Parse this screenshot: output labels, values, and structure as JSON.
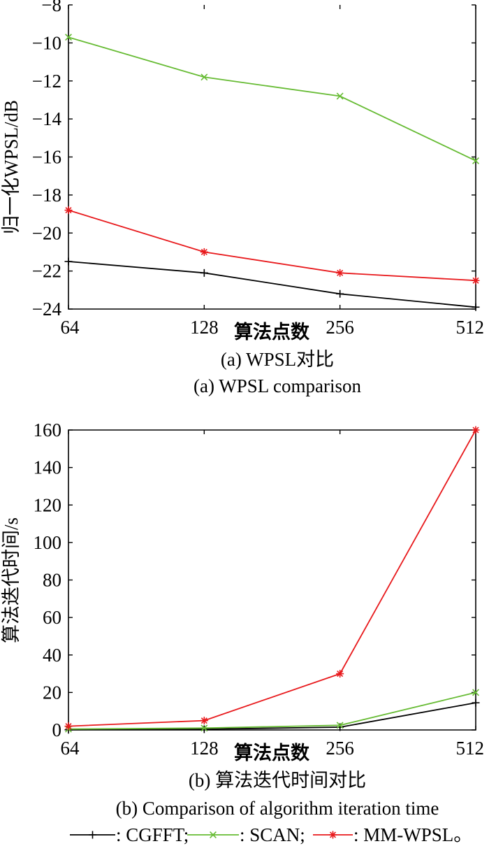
{
  "chart_data": [
    {
      "type": "line",
      "caption_cn": "(a) WPSL对比",
      "caption_en": "(a) WPSL comparison",
      "xlabel": "算法点数",
      "ylabel": "归一化WPSL/dB",
      "categories": [
        "64",
        "128",
        "256",
        "512"
      ],
      "yticks": [
        "−8",
        "−10",
        "−12",
        "−14",
        "−16",
        "−18",
        "−20",
        "−22",
        "−24"
      ],
      "ylim": [
        -24,
        -8
      ],
      "grid": false,
      "series": [
        {
          "name": "CGFFT",
          "color": "#000000",
          "marker": "plus",
          "values": [
            -21.5,
            -22.1,
            -23.2,
            -23.9
          ]
        },
        {
          "name": "SCAN",
          "color": "#66bb33",
          "marker": "x",
          "values": [
            -9.7,
            -11.8,
            -12.8,
            -16.2
          ]
        },
        {
          "name": "MM-WPSL",
          "color": "#e8191c",
          "marker": "star",
          "values": [
            -18.8,
            -21.0,
            -22.1,
            -22.5
          ]
        }
      ]
    },
    {
      "type": "line",
      "caption_cn": "(b) 算法迭代时间对比",
      "caption_en": "(b) Comparison of algorithm iteration time",
      "xlabel": "算法点数",
      "ylabel": "算法迭代时间/s",
      "categories": [
        "64",
        "128",
        "256",
        "512"
      ],
      "yticks": [
        "160",
        "140",
        "120",
        "100",
        "80",
        "60",
        "40",
        "20",
        "0"
      ],
      "ylim": [
        0,
        160
      ],
      "grid": false,
      "series": [
        {
          "name": "CGFFT",
          "color": "#000000",
          "marker": "plus",
          "values": [
            0.1,
            0.4,
            1.5,
            14.5
          ]
        },
        {
          "name": "SCAN",
          "color": "#66bb33",
          "marker": "x",
          "values": [
            0.5,
            1.0,
            2.5,
            20.0
          ]
        },
        {
          "name": "MM-WPSL",
          "color": "#e8191c",
          "marker": "star",
          "values": [
            2.0,
            5.0,
            30.0,
            160.0
          ]
        }
      ]
    }
  ],
  "legend": {
    "items": [
      {
        "label": ": CGFFT;",
        "color": "#000000",
        "marker": "plus"
      },
      {
        "label": ": SCAN;",
        "color": "#66bb33",
        "marker": "x"
      },
      {
        "label": ": MM-WPSL。",
        "color": "#e8191c",
        "marker": "star"
      }
    ]
  }
}
